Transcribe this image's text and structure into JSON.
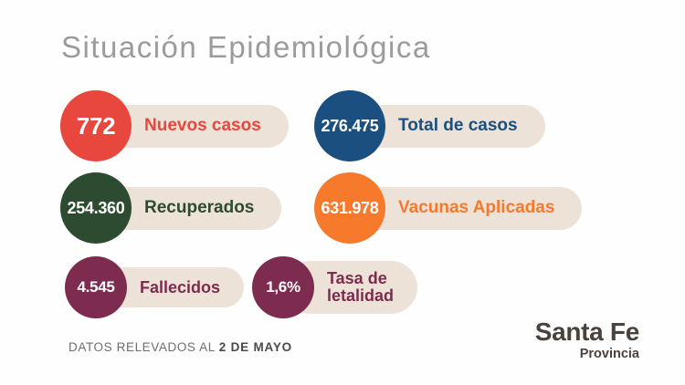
{
  "title": "Situación Epidemiológica",
  "stats": [
    {
      "value": "772",
      "label": "Nuevos casos",
      "color": "#e8473d"
    },
    {
      "value": "276.475",
      "label": "Total de casos",
      "color": "#1b4f80"
    },
    {
      "value": "254.360",
      "label": "Recuperados",
      "color": "#2d4b30"
    },
    {
      "value": "631.978",
      "label": "Vacunas Aplicadas",
      "color": "#f6792c"
    },
    {
      "value": "4.545",
      "label": "Fallecidos",
      "color": "#7d2b4e"
    },
    {
      "value": "1,6%",
      "label": "Tasa de\nletalidad",
      "color": "#7d2b4e"
    }
  ],
  "footer": {
    "prefix": "DATOS RELEVADOS AL",
    "date": "2 DE MAYO"
  },
  "logo": {
    "main": "Santa Fe",
    "sub": "Provincia"
  },
  "colors": {
    "background": "#fefefe",
    "pill": "#ece2d8",
    "title_text": "#9b9b9b",
    "footer_text": "#6e6e6e",
    "logo_text": "#4a423c"
  },
  "chart_data": {
    "type": "table",
    "title": "Situación Epidemiológica",
    "categories": [
      "Nuevos casos",
      "Total de casos",
      "Recuperados",
      "Vacunas Aplicadas",
      "Fallecidos",
      "Tasa de letalidad"
    ],
    "values": [
      772,
      276475,
      254360,
      631978,
      4545,
      "1,6%"
    ],
    "annotations": [
      "DATOS RELEVADOS AL 2 DE MAYO"
    ]
  }
}
